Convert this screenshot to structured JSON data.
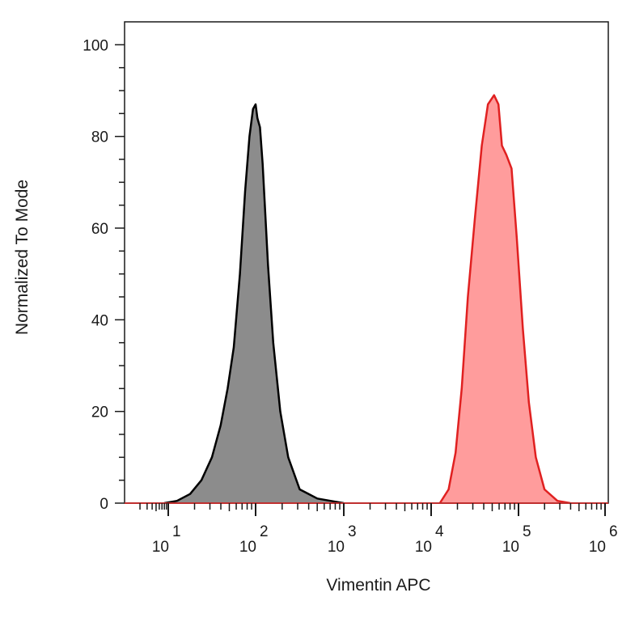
{
  "chart_data": {
    "type": "area",
    "title": "",
    "xlabel": "Vimentin APC",
    "ylabel": "Normalized To Mode",
    "x_scale": "log",
    "x_decades": [
      1,
      2,
      3,
      4,
      5,
      6
    ],
    "x_tick_base": "10",
    "ylim": [
      0,
      105
    ],
    "y_ticks": [
      0,
      20,
      40,
      60,
      80,
      100
    ],
    "grid": false,
    "legend": "none",
    "series": [
      {
        "color": "#000000",
        "fill": "#8c8c8c",
        "points": [
          [
            0.9,
            0
          ],
          [
            1.1,
            0.5
          ],
          [
            1.25,
            2
          ],
          [
            1.38,
            5
          ],
          [
            1.5,
            10
          ],
          [
            1.6,
            17
          ],
          [
            1.68,
            25
          ],
          [
            1.75,
            34
          ],
          [
            1.82,
            50
          ],
          [
            1.88,
            68
          ],
          [
            1.93,
            80
          ],
          [
            1.97,
            86
          ],
          [
            2.0,
            87
          ],
          [
            2.02,
            84
          ],
          [
            2.05,
            82
          ],
          [
            2.08,
            74
          ],
          [
            2.14,
            52
          ],
          [
            2.2,
            35
          ],
          [
            2.28,
            20
          ],
          [
            2.37,
            10
          ],
          [
            2.5,
            3
          ],
          [
            2.7,
            1
          ],
          [
            2.85,
            0.5
          ],
          [
            3.0,
            0
          ]
        ]
      },
      {
        "color": "#e02020",
        "fill": "#ff9c9c",
        "points": [
          [
            4.1,
            0
          ],
          [
            4.2,
            3
          ],
          [
            4.28,
            11
          ],
          [
            4.35,
            25
          ],
          [
            4.42,
            45
          ],
          [
            4.5,
            62
          ],
          [
            4.58,
            78
          ],
          [
            4.65,
            87
          ],
          [
            4.72,
            89
          ],
          [
            4.77,
            87
          ],
          [
            4.81,
            78
          ],
          [
            4.86,
            76
          ],
          [
            4.92,
            73
          ],
          [
            4.98,
            58
          ],
          [
            5.05,
            38
          ],
          [
            5.12,
            22
          ],
          [
            5.2,
            10
          ],
          [
            5.3,
            3
          ],
          [
            5.45,
            0.5
          ],
          [
            5.6,
            0
          ]
        ]
      }
    ]
  }
}
